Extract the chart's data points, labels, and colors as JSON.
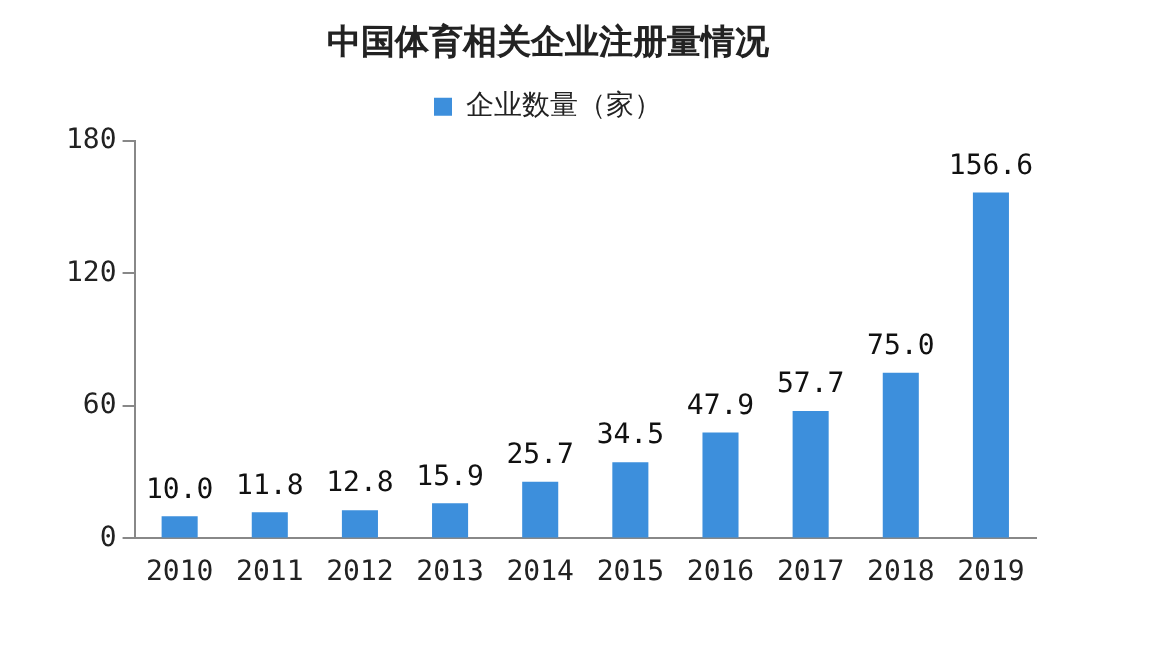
{
  "chart_data": {
    "type": "bar",
    "title": "中国体育相关企业注册量情况",
    "categories": [
      "2010",
      "2011",
      "2012",
      "2013",
      "2014",
      "2015",
      "2016",
      "2017",
      "2018",
      "2019"
    ],
    "series": [
      {
        "name": "企业数量（家）",
        "color": "#3d8fdc",
        "values": [
          10.0,
          11.8,
          12.8,
          15.9,
          25.7,
          34.5,
          47.9,
          57.7,
          75.0,
          156.6
        ],
        "value_labels": [
          "10.0",
          "11.8",
          "12.8",
          "15.9",
          "25.7",
          "34.5",
          "47.9",
          "57.7",
          "75.0",
          "156.6"
        ]
      }
    ],
    "ylim": [
      0,
      180
    ],
    "yticks": [
      0,
      60,
      120,
      180
    ],
    "grid": false,
    "legend": "top"
  }
}
